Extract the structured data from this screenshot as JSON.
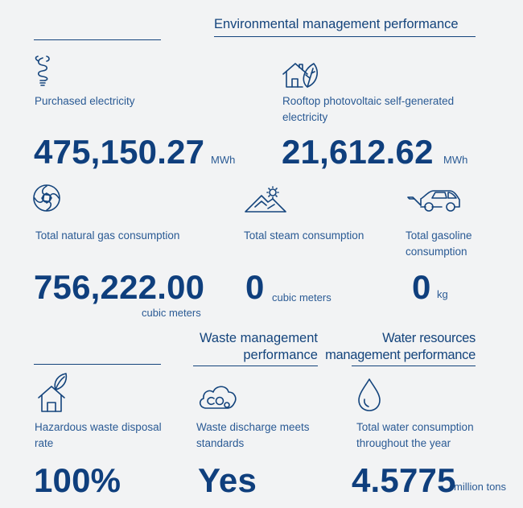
{
  "colors": {
    "primary": "#14447c",
    "background": "#f2f3f4"
  },
  "headers": {
    "environmental": "Environmental management performance",
    "waste": [
      "Waste management",
      "performance"
    ],
    "water": [
      "Water resources",
      "management performance"
    ]
  },
  "items": {
    "purchased_electricity": {
      "icon": "lightbulb-icon",
      "label": "Purchased electricity",
      "value": "475,150.27",
      "unit": "MWh"
    },
    "rooftop_pv": {
      "icon": "house-leaf-icon",
      "label": "Rooftop photovoltaic self-generated electricity",
      "value": "21,612.62",
      "unit": "MWh"
    },
    "natural_gas": {
      "icon": "gas-flame-icon",
      "label": "Total natural gas consumption",
      "value": "756,222.00",
      "unit": "cubic meters"
    },
    "steam": {
      "icon": "steam-mountain-icon",
      "label": "Total steam consumption",
      "value": "0",
      "unit": "cubic meters"
    },
    "gasoline": {
      "icon": "car-icon",
      "label": "Total gasoline consumption",
      "value": "0",
      "unit": "kg"
    },
    "hazardous_waste": {
      "icon": "house-plant-icon",
      "label": "Hazardous waste disposal rate",
      "value": "100%"
    },
    "waste_discharge": {
      "icon": "co2-cloud-icon",
      "label": "Waste discharge meets standards",
      "value": "Yes"
    },
    "water_consumption": {
      "icon": "water-drop-icon",
      "label": "Total water consumption throughout the year",
      "value": "4.5775",
      "unit": "million tons"
    }
  }
}
